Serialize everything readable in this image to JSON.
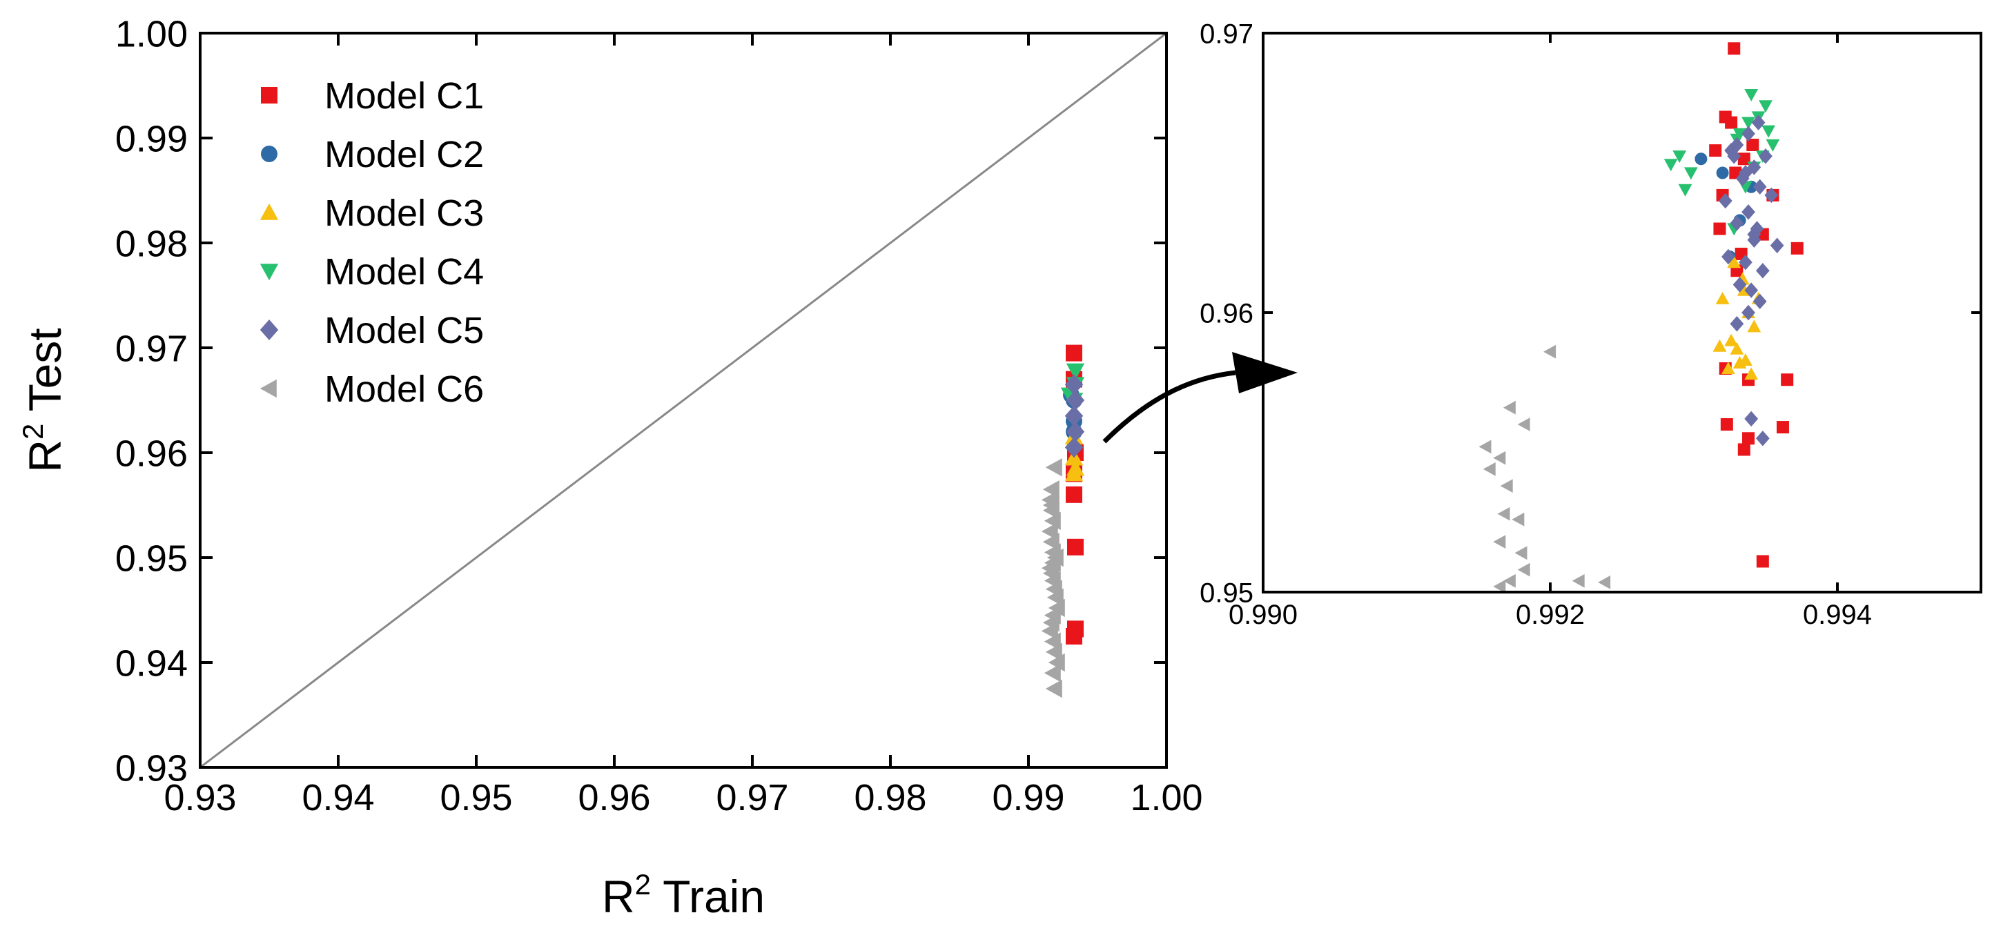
{
  "chart_data": [
    {
      "type": "scatter",
      "title": "",
      "xlabel": "R",
      "xlabel_sup": "2",
      "xlabel_rest": " Train",
      "ylabel": "R",
      "ylabel_sup": "2",
      "ylabel_rest": " Test",
      "xlim": [
        0.93,
        1.0
      ],
      "ylim": [
        0.93,
        1.0
      ],
      "x_ticks": [
        "0.93",
        "0.94",
        "0.95",
        "0.96",
        "0.97",
        "0.98",
        "0.99",
        "1.00"
      ],
      "y_ticks": [
        "0.93",
        "0.94",
        "0.95",
        "0.96",
        "0.97",
        "0.98",
        "0.99",
        "1.00"
      ],
      "reference_line": "y = x",
      "legend_position": "top-left",
      "series": [
        {
          "name": "Model C1",
          "color": "#e8151b",
          "marker": "square",
          "x": [
            0.9933,
            0.9933,
            0.9934,
            0.9933,
            0.9933,
            0.9934,
            0.9933,
            0.9934
          ],
          "y": [
            0.9695,
            0.967,
            0.96,
            0.958,
            0.956,
            0.951,
            0.9425,
            0.9432
          ]
        },
        {
          "name": "Model C2",
          "color": "#2e6aa5",
          "marker": "circle",
          "x": [
            0.9931,
            0.9933,
            0.9933,
            0.9933
          ],
          "y": [
            0.9655,
            0.965,
            0.963,
            0.962
          ]
        },
        {
          "name": "Model C3",
          "color": "#f7bf0f",
          "marker": "triangle-up",
          "x": [
            0.9933,
            0.9933,
            0.9934,
            0.9933
          ],
          "y": [
            0.9615,
            0.9595,
            0.9585,
            0.958
          ]
        },
        {
          "name": "Model C4",
          "color": "#27c06e",
          "marker": "triangle-down",
          "x": [
            0.993,
            0.9934,
            0.9934,
            0.9933
          ],
          "y": [
            0.9655,
            0.9678,
            0.9665,
            0.965
          ]
        },
        {
          "name": "Model C5",
          "color": "#6a6ea6",
          "marker": "diamond",
          "x": [
            0.9933,
            0.9934,
            0.9933,
            0.9934,
            0.9933
          ],
          "y": [
            0.9665,
            0.965,
            0.9635,
            0.962,
            0.9605
          ]
        },
        {
          "name": "Model C6",
          "color": "#a5a5a5",
          "marker": "triangle-left",
          "x": [
            0.9919,
            0.9917,
            0.9916,
            0.9917,
            0.9917,
            0.9918,
            0.9916,
            0.9917,
            0.9918,
            0.992,
            0.9918,
            0.9916,
            0.9917,
            0.9918,
            0.9919,
            0.992,
            0.9921,
            0.9918,
            0.9917,
            0.9916,
            0.9918,
            0.9919,
            0.9921,
            0.9918,
            0.9919
          ],
          "y": [
            0.9586,
            0.9565,
            0.9555,
            0.955,
            0.9545,
            0.9535,
            0.9525,
            0.9515,
            0.9505,
            0.95,
            0.9495,
            0.949,
            0.9485,
            0.9478,
            0.947,
            0.9462,
            0.9452,
            0.9445,
            0.9438,
            0.943,
            0.942,
            0.941,
            0.94,
            0.939,
            0.9375
          ]
        }
      ]
    },
    {
      "type": "scatter",
      "title": "",
      "xlabel": "",
      "ylabel": "",
      "xlim": [
        0.99,
        0.995
      ],
      "ylim": [
        0.95,
        0.97
      ],
      "x_ticks": [
        "0.990",
        "0.992",
        "0.994"
      ],
      "y_ticks": [
        "0.95",
        "0.96",
        "0.97"
      ],
      "series": [
        {
          "name": "Model C1",
          "color": "#e8151b",
          "marker": "square",
          "x": [
            0.99328,
            0.99322,
            0.99315,
            0.99335,
            0.99355,
            0.99372,
            0.99365,
            0.99322,
            0.99338,
            0.99323,
            0.99362,
            0.99348,
            0.99335,
            0.99326,
            0.9933,
            0.99338,
            0.99348,
            0.99318,
            0.99329,
            0.99341,
            0.9932,
            0.99333
          ],
          "y": [
            0.96945,
            0.967,
            0.9658,
            0.9655,
            0.9642,
            0.9623,
            0.9576,
            0.958,
            0.9576,
            0.956,
            0.9559,
            0.9511,
            0.9551,
            0.9668,
            0.9615,
            0.9555,
            0.9628,
            0.963,
            0.965,
            0.966,
            0.9642,
            0.9621
          ]
        },
        {
          "name": "Model C2",
          "color": "#2e6aa5",
          "marker": "circle",
          "x": [
            0.99305,
            0.9932,
            0.99332,
            0.99325,
            0.9934
          ],
          "y": [
            0.9655,
            0.965,
            0.9633,
            0.962,
            0.9645
          ]
        },
        {
          "name": "Model C3",
          "color": "#f7bf0f",
          "marker": "triangle-up",
          "x": [
            0.99328,
            0.99334,
            0.9932,
            0.99338,
            0.99342,
            0.99326,
            0.9933,
            0.99336,
            0.9934,
            0.99324,
            0.99332,
            0.99345,
            0.99318,
            0.99335
          ],
          "y": [
            0.9618,
            0.9612,
            0.9605,
            0.96,
            0.9595,
            0.959,
            0.9587,
            0.9583,
            0.9578,
            0.958,
            0.9582,
            0.9605,
            0.9588,
            0.9608
          ]
        },
        {
          "name": "Model C4",
          "color": "#27c06e",
          "marker": "triangle-down",
          "x": [
            0.9929,
            0.99284,
            0.99298,
            0.99294,
            0.9934,
            0.9935,
            0.99345,
            0.99338,
            0.99332,
            0.99355,
            0.99348,
            0.99342,
            0.9933,
            0.99328,
            0.99336,
            0.99352
          ],
          "y": [
            0.9656,
            0.9653,
            0.965,
            0.9644,
            0.9678,
            0.9674,
            0.967,
            0.9668,
            0.9664,
            0.966,
            0.9656,
            0.9652,
            0.9662,
            0.963,
            0.9645,
            0.9665
          ]
        },
        {
          "name": "Model C5",
          "color": "#6a6ea6",
          "marker": "diamond",
          "x": [
            0.99345,
            0.99338,
            0.9933,
            0.9935,
            0.99342,
            0.99326,
            0.99334,
            0.99346,
            0.99354,
            0.99322,
            0.99338,
            0.9933,
            0.99342,
            0.99358,
            0.99324,
            0.99336,
            0.99348,
            0.99332,
            0.9934,
            0.99346,
            0.99338,
            0.9933,
            0.99342,
            0.99328,
            0.99336,
            0.99344,
            0.9934,
            0.99348
          ],
          "y": [
            0.9668,
            0.9664,
            0.966,
            0.9656,
            0.9652,
            0.9658,
            0.9648,
            0.9645,
            0.9642,
            0.964,
            0.9636,
            0.9632,
            0.9628,
            0.9624,
            0.962,
            0.9618,
            0.9615,
            0.961,
            0.9608,
            0.9604,
            0.96,
            0.9596,
            0.9626,
            0.9656,
            0.965,
            0.963,
            0.9562,
            0.9555
          ]
        },
        {
          "name": "Model C6",
          "color": "#a5a5a5",
          "marker": "triangle-left",
          "x": [
            0.992,
            0.99172,
            0.99155,
            0.99165,
            0.99182,
            0.99158,
            0.9917,
            0.99168,
            0.99178,
            0.99165,
            0.9918,
            0.99182,
            0.99172,
            0.99165,
            0.9922,
            0.99238
          ],
          "y": [
            0.9586,
            0.9566,
            0.9552,
            0.9548,
            0.956,
            0.9544,
            0.9538,
            0.9528,
            0.9526,
            0.9518,
            0.9514,
            0.9508,
            0.9504,
            0.9502,
            0.9504,
            0.95035
          ]
        }
      ]
    }
  ]
}
